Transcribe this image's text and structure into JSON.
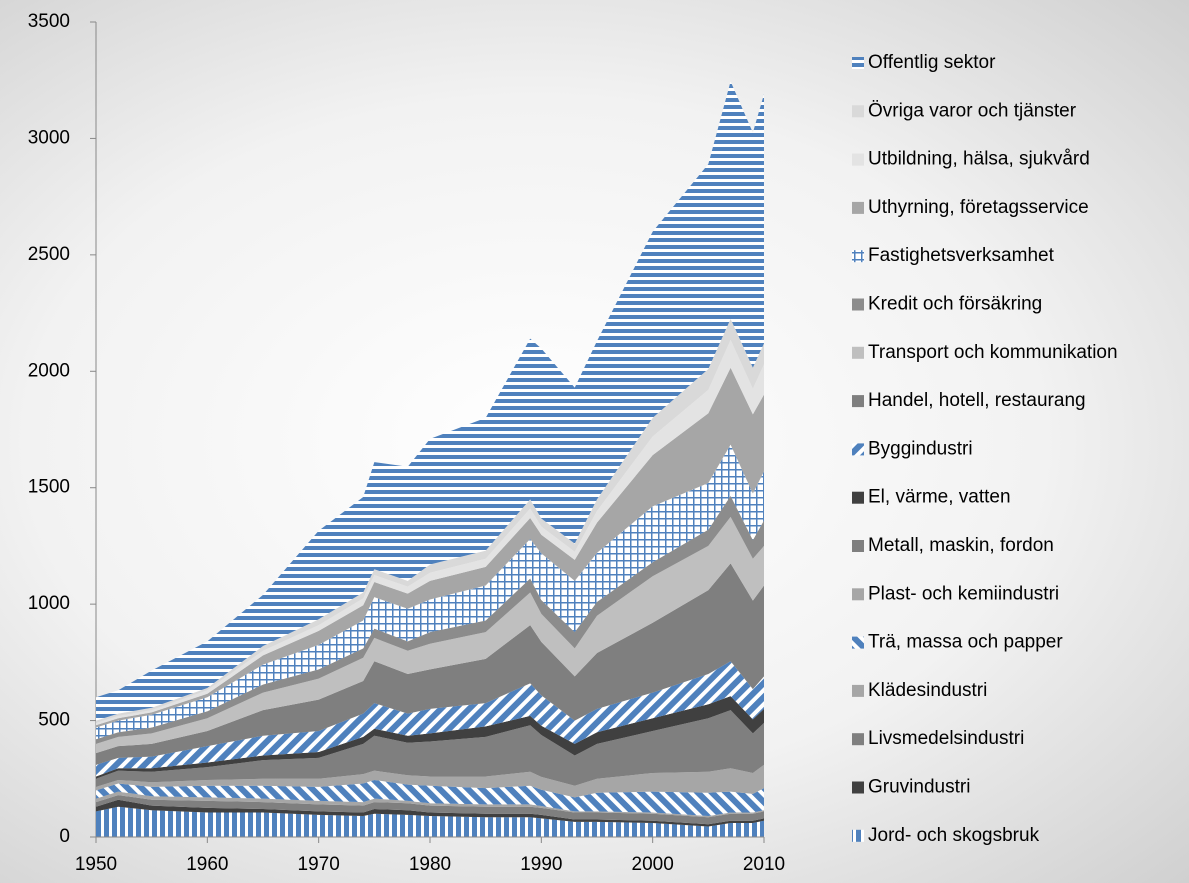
{
  "chart_data": {
    "type": "stacked_area",
    "x": [
      1950,
      1952,
      1955,
      1960,
      1965,
      1970,
      1974,
      1975,
      1978,
      1980,
      1985,
      1989,
      1990,
      1993,
      1995,
      2000,
      2005,
      2007,
      2009,
      2010
    ],
    "xlim": [
      1950,
      2010
    ],
    "xticks": [
      1950,
      1960,
      1970,
      1980,
      1990,
      2000,
      2010
    ],
    "ylim": [
      0,
      3500
    ],
    "yticks": [
      0,
      500,
      1000,
      1500,
      2000,
      2500,
      3000,
      3500
    ],
    "legend": "right",
    "series": [
      {
        "name": "Jord- och skogsbruk",
        "color": "#4f81bd",
        "pattern": "vertical",
        "values": [
          110,
          130,
          115,
          105,
          105,
          95,
          90,
          100,
          95,
          90,
          85,
          85,
          80,
          65,
          65,
          60,
          45,
          60,
          60,
          70
        ]
      },
      {
        "name": "Gruvindustri",
        "color": "#404040",
        "values": [
          20,
          30,
          20,
          20,
          15,
          15,
          15,
          20,
          20,
          15,
          15,
          15,
          15,
          10,
          10,
          10,
          10,
          10,
          10,
          10
        ]
      },
      {
        "name": "Livsmedelsindustri",
        "color": "#7f7f7f",
        "values": [
          20,
          20,
          25,
          30,
          30,
          30,
          30,
          30,
          30,
          30,
          30,
          30,
          30,
          30,
          30,
          30,
          30,
          30,
          30,
          30
        ]
      },
      {
        "name": "Klädesindustri",
        "color": "#a6a6a6",
        "values": [
          15,
          15,
          15,
          15,
          15,
          15,
          15,
          15,
          10,
          10,
          10,
          10,
          8,
          5,
          5,
          5,
          5,
          5,
          5,
          5
        ]
      },
      {
        "name": "Trä, massa och papper",
        "color": "#4f81bd",
        "pattern": "backslash",
        "values": [
          35,
          35,
          40,
          50,
          55,
          60,
          80,
          80,
          70,
          75,
          70,
          80,
          70,
          60,
          80,
          90,
          100,
          90,
          80,
          95
        ]
      },
      {
        "name": "Plast- och kemiindustri",
        "color": "#a6a6a6",
        "values": [
          15,
          15,
          20,
          25,
          30,
          35,
          40,
          40,
          40,
          40,
          50,
          60,
          55,
          50,
          60,
          80,
          90,
          100,
          90,
          100
        ]
      },
      {
        "name": "Metall, maskin, fordon",
        "color": "#7f7f7f",
        "values": [
          35,
          40,
          45,
          55,
          80,
          90,
          130,
          150,
          140,
          150,
          170,
          200,
          180,
          130,
          150,
          180,
          230,
          250,
          170,
          180
        ]
      },
      {
        "name": "El, värme, vatten",
        "color": "#404040",
        "values": [
          10,
          10,
          15,
          20,
          20,
          25,
          30,
          30,
          30,
          35,
          45,
          40,
          40,
          50,
          50,
          55,
          60,
          60,
          60,
          60
        ]
      },
      {
        "name": "Byggindustri",
        "color": "#4f81bd",
        "pattern": "slash",
        "values": [
          50,
          45,
          50,
          70,
          85,
          90,
          100,
          110,
          95,
          105,
          100,
          140,
          130,
          100,
          100,
          110,
          130,
          150,
          130,
          140
        ]
      },
      {
        "name": "Handel, hotell, restaurang",
        "color": "#7f7f7f",
        "values": [
          50,
          50,
          55,
          65,
          110,
          135,
          140,
          180,
          170,
          170,
          190,
          250,
          230,
          190,
          240,
          300,
          360,
          420,
          380,
          390
        ]
      },
      {
        "name": "Transport och kommunikation",
        "color": "#bfbfbf",
        "values": [
          40,
          40,
          45,
          55,
          75,
          90,
          100,
          100,
          100,
          110,
          115,
          140,
          120,
          120,
          160,
          200,
          190,
          200,
          180,
          170
        ]
      },
      {
        "name": "Kredit och försäkring",
        "color": "#8c8c8c",
        "values": [
          20,
          20,
          25,
          30,
          35,
          40,
          40,
          40,
          40,
          50,
          50,
          60,
          60,
          70,
          60,
          60,
          70,
          90,
          80,
          110
        ]
      },
      {
        "name": "Fastighetsverksamhet",
        "color": "#4f81bd",
        "pattern": "grid",
        "values": [
          50,
          50,
          55,
          60,
          85,
          105,
          120,
          135,
          140,
          140,
          150,
          170,
          200,
          220,
          210,
          240,
          200,
          220,
          200,
          210
        ]
      },
      {
        "name": "Uthyrning, företagsservice",
        "color": "#a6a6a6",
        "values": [
          10,
          10,
          10,
          15,
          40,
          60,
          65,
          65,
          65,
          80,
          80,
          90,
          80,
          90,
          130,
          220,
          300,
          330,
          340,
          330
        ]
      },
      {
        "name": "Utbildning, hälsa, sjukvård",
        "color": "#e3e3e3",
        "values": [
          10,
          10,
          10,
          15,
          20,
          25,
          30,
          30,
          30,
          35,
          35,
          40,
          35,
          35,
          50,
          80,
          100,
          120,
          110,
          130
        ]
      },
      {
        "name": "Övriga varor och tjänster",
        "color": "#d9d9d9",
        "values": [
          10,
          10,
          10,
          10,
          20,
          25,
          25,
          25,
          25,
          35,
          35,
          40,
          35,
          35,
          50,
          80,
          90,
          90,
          90,
          90
        ]
      },
      {
        "name": "Offentlig sektor",
        "color": "#4f81bd",
        "pattern": "horizontal",
        "values": [
          100,
          100,
          160,
          200,
          220,
          380,
          410,
          460,
          490,
          540,
          570,
          690,
          730,
          670,
          680,
          800,
          880,
          1020,
          1010,
          1070
        ]
      }
    ]
  }
}
